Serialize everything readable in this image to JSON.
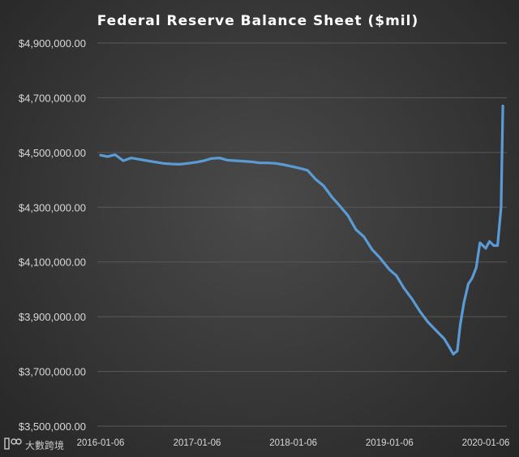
{
  "chart_data": {
    "type": "line",
    "title": "Federal Reserve Balance Sheet ($mil)",
    "xlabel": "",
    "ylabel": "",
    "ylim": [
      3500000,
      4900000
    ],
    "xlim": [
      "2016-01-06",
      "2020-03-11"
    ],
    "y_ticks": [
      3500000,
      3700000,
      3900000,
      4100000,
      4300000,
      4500000,
      4700000,
      4900000
    ],
    "y_tick_labels": [
      "$3,500,000.00",
      "$3,700,000.00",
      "$3,900,000.00",
      "$4,100,000.00",
      "$4,300,000.00",
      "$4,500,000.00",
      "$4,700,000.00",
      "$4,900,000.00"
    ],
    "x_ticks": [
      "2016-01-06",
      "2017-01-06",
      "2018-01-06",
      "2019-01-06",
      "2020-01-06"
    ],
    "grid": true,
    "legend": "none",
    "color": "#5b9bd5",
    "series": [
      {
        "name": "Federal Reserve Balance Sheet",
        "x": [
          "2016-01-06",
          "2016-02-01",
          "2016-03-01",
          "2016-04-01",
          "2016-05-01",
          "2016-06-01",
          "2016-07-01",
          "2016-08-01",
          "2016-09-01",
          "2016-10-01",
          "2016-11-01",
          "2016-12-01",
          "2017-01-06",
          "2017-02-01",
          "2017-03-01",
          "2017-04-01",
          "2017-05-01",
          "2017-06-01",
          "2017-07-01",
          "2017-08-01",
          "2017-09-01",
          "2017-10-01",
          "2017-11-01",
          "2017-12-01",
          "2018-01-06",
          "2018-02-01",
          "2018-03-01",
          "2018-04-01",
          "2018-05-01",
          "2018-06-01",
          "2018-07-01",
          "2018-08-01",
          "2018-09-01",
          "2018-10-01",
          "2018-11-01",
          "2018-12-01",
          "2019-01-06",
          "2019-02-01",
          "2019-03-01",
          "2019-04-01",
          "2019-05-01",
          "2019-06-01",
          "2019-07-01",
          "2019-08-01",
          "2019-08-20",
          "2019-09-05",
          "2019-09-20",
          "2019-10-01",
          "2019-10-15",
          "2019-11-01",
          "2019-11-15",
          "2019-12-01",
          "2019-12-15",
          "2020-01-06",
          "2020-01-20",
          "2020-02-05",
          "2020-02-20",
          "2020-03-04",
          "2020-03-11"
        ],
        "values": [
          4490000,
          4485000,
          4492000,
          4470000,
          4480000,
          4475000,
          4470000,
          4465000,
          4460000,
          4458000,
          4457000,
          4460000,
          4465000,
          4470000,
          4478000,
          4480000,
          4472000,
          4470000,
          4468000,
          4466000,
          4462000,
          4462000,
          4460000,
          4455000,
          4448000,
          4442000,
          4435000,
          4402000,
          4378000,
          4338000,
          4305000,
          4270000,
          4218000,
          4192000,
          4145000,
          4115000,
          4072000,
          4050000,
          4005000,
          3965000,
          3920000,
          3880000,
          3850000,
          3820000,
          3790000,
          3763000,
          3775000,
          3870000,
          3950000,
          4020000,
          4040000,
          4080000,
          4170000,
          4150000,
          4175000,
          4160000,
          4160000,
          4300000,
          4670000
        ]
      }
    ]
  },
  "watermark": {
    "text": "大數跨境"
  }
}
